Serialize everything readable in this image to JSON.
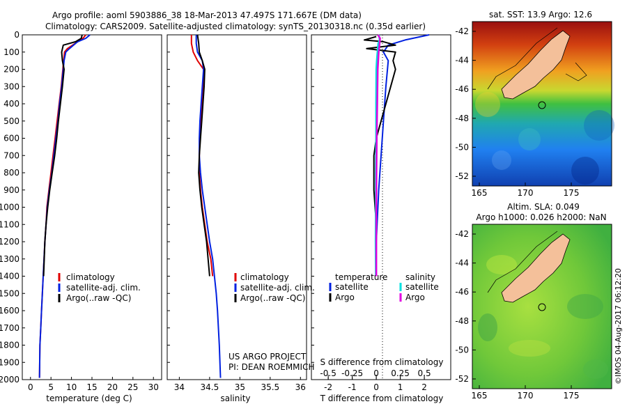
{
  "header": {
    "title_line1": "Argo profile: aoml 5903886_38 18-Mar-2013 47.497S 171.667E (DM data)",
    "title_line2": "Climatology: CARS2009. Satellite-adjusted climatology: synTS_20130318.nc (0.35d earlier)"
  },
  "colors": {
    "climatology": "#e00000",
    "satellite": "#0020e0",
    "argo": "#000000",
    "sal_satellite": "#00e0e0",
    "sal_argo": "#e000e0"
  },
  "y_ticks": [
    "0",
    "100",
    "200",
    "300",
    "400",
    "500",
    "600",
    "700",
    "800",
    "900",
    "1000",
    "1100",
    "1200",
    "1300",
    "1400",
    "1500",
    "1600",
    "1700",
    "1800",
    "1900",
    "2000"
  ],
  "temp_panel": {
    "xlabel": "temperature (deg C)",
    "x_ticks": [
      "0",
      "5",
      "10",
      "15",
      "20",
      "25",
      "30"
    ],
    "legend": [
      "climatology",
      "satellite-adj. clim.",
      "Argo(..raw -QC)"
    ]
  },
  "sal_panel": {
    "xlabel": "salinity",
    "x_ticks": [
      "34",
      "34.5",
      "35",
      "35.5",
      "36"
    ],
    "legend": [
      "climatology",
      "satellite-adj. clim.",
      "Argo(..raw -QC)"
    ],
    "credit1": "US ARGO PROJECT",
    "credit2": "PI: DEAN ROEMMICH"
  },
  "diff_panel": {
    "xlabel": "T difference from climatology",
    "s_label": "S difference from climatology",
    "t_ticks": [
      "-2",
      "-1",
      "0",
      "1",
      "2"
    ],
    "s_ticks": [
      "-0.5",
      "-0.25",
      "0",
      "0.25",
      "0.5"
    ],
    "legend_temp_title": "temperature",
    "legend_sal_title": "salinity",
    "legend_temp": [
      "satellite",
      "Argo"
    ],
    "legend_sal": [
      "satellite",
      "Argo"
    ]
  },
  "map1": {
    "title": "sat. SST: 13.9 Argo: 12.6",
    "y_ticks": [
      "-42",
      "-44",
      "-46",
      "-48",
      "-50",
      "-52"
    ],
    "x_ticks": [
      "165",
      "170",
      "175"
    ]
  },
  "map2": {
    "title1": "Altim. SLA: 0.049",
    "title2": "Argo h1000: 0.026 h2000: NaN",
    "y_ticks": [
      "-42",
      "-44",
      "-46",
      "-48",
      "-50",
      "-52"
    ],
    "x_ticks": [
      "165",
      "170",
      "175"
    ]
  },
  "footer": {
    "stamp": "©IMOS 04-Aug-2017 06:12:20"
  },
  "chart_data": [
    {
      "type": "line",
      "xlabel": "temperature (deg C)",
      "xlim": [
        -2,
        32
      ],
      "ylim": [
        2000,
        0
      ],
      "series": [
        {
          "name": "climatology",
          "x": [
            13.5,
            12.8,
            11.5,
            9.0,
            8.3,
            8.1,
            7.9,
            7.5,
            7.0,
            6.5,
            6.0,
            5.5,
            5.0,
            4.5,
            4.0,
            3.8,
            3.5,
            3.3,
            3.1,
            2.9,
            2.7,
            2.5,
            2.3,
            2.2
          ],
          "y": [
            0,
            20,
            40,
            80,
            100,
            150,
            200,
            300,
            400,
            500,
            600,
            700,
            800,
            900,
            1000,
            1100,
            1200,
            1300,
            1400,
            1500,
            1600,
            1700,
            1800,
            1990
          ]
        },
        {
          "name": "satellite-adj. clim.",
          "x": [
            14.5,
            13.5,
            11.5,
            9.5,
            8.6,
            8.2,
            8.0,
            7.6,
            7.1,
            6.7,
            6.2,
            5.7,
            5.2,
            4.6,
            4.1,
            3.8,
            3.5,
            3.3,
            3.1,
            2.9,
            2.7,
            2.5,
            2.3,
            2.2
          ],
          "y": [
            0,
            20,
            40,
            80,
            100,
            150,
            200,
            300,
            400,
            500,
            600,
            700,
            800,
            900,
            1000,
            1100,
            1200,
            1300,
            1400,
            1500,
            1600,
            1700,
            1800,
            1990
          ]
        },
        {
          "name": "Argo(..raw -QC)",
          "x": [
            12.6,
            12.4,
            11.0,
            8.0,
            7.6,
            7.8,
            8.2,
            7.8,
            7.3,
            6.8,
            6.4,
            5.9,
            5.3,
            4.7,
            4.2,
            3.8,
            3.5,
            3.2
          ],
          "y": [
            0,
            20,
            40,
            60,
            100,
            150,
            200,
            300,
            400,
            500,
            600,
            700,
            800,
            900,
            1000,
            1100,
            1200,
            1400
          ]
        }
      ]
    },
    {
      "type": "line",
      "xlabel": "salinity",
      "xlim": [
        33.8,
        36.1
      ],
      "ylim": [
        2000,
        0
      ],
      "series": [
        {
          "name": "climatology",
          "x": [
            34.2,
            34.2,
            34.23,
            34.3,
            34.4,
            34.4,
            34.38,
            34.36,
            34.34,
            34.33,
            34.33,
            34.35,
            34.38,
            34.42,
            34.46,
            34.52,
            34.55
          ],
          "y": [
            0,
            50,
            100,
            150,
            200,
            300,
            400,
            500,
            600,
            700,
            800,
            900,
            1000,
            1100,
            1200,
            1300,
            1400
          ]
        },
        {
          "name": "satellite-adj. clim.",
          "x": [
            34.28,
            34.28,
            34.3,
            34.38,
            34.4,
            34.38,
            34.36,
            34.34,
            34.33,
            34.33,
            34.35,
            34.38,
            34.42,
            34.46,
            34.5,
            34.55,
            34.58,
            34.61,
            34.63,
            34.66,
            34.68
          ],
          "y": [
            0,
            50,
            100,
            150,
            200,
            300,
            400,
            500,
            600,
            700,
            800,
            900,
            1000,
            1100,
            1200,
            1300,
            1400,
            1500,
            1600,
            1800,
            1990
          ]
        },
        {
          "name": "Argo(..raw -QC)",
          "x": [
            34.3,
            34.32,
            34.33,
            34.38,
            34.42,
            34.41,
            34.39,
            34.37,
            34.35,
            34.33,
            34.32,
            34.34,
            34.37,
            34.41,
            34.45,
            34.5
          ],
          "y": [
            0,
            50,
            100,
            150,
            200,
            300,
            400,
            500,
            600,
            700,
            800,
            900,
            1000,
            1100,
            1200,
            1400
          ]
        }
      ]
    },
    {
      "type": "line",
      "xlabel": "T difference from climatology",
      "xlim": [
        -2.7,
        3.1
      ],
      "ylim": [
        2000,
        0
      ],
      "series": [
        {
          "name": "temperature satellite",
          "x": [
            2.2,
            1.2,
            0.5,
            0.3,
            0.5,
            0.4,
            0.3,
            0.2,
            0.1,
            0.0,
            0.0
          ],
          "y": [
            0,
            30,
            60,
            100,
            150,
            300,
            500,
            700,
            900,
            1200,
            1400
          ]
        },
        {
          "name": "temperature Argo",
          "x": [
            0.0,
            -0.5,
            0.3,
            0.8,
            -0.4,
            0.8,
            0.7,
            0.8,
            0.6,
            0.4,
            0.2,
            0.0,
            -0.1,
            -0.1,
            0.0,
            0.0
          ],
          "y": [
            10,
            30,
            40,
            60,
            80,
            100,
            150,
            200,
            300,
            400,
            500,
            600,
            700,
            900,
            1100,
            1400
          ]
        },
        {
          "name": "salinity satellite",
          "x": [
            0.11,
            0.14,
            0.08,
            0.05,
            0.02,
            0.0,
            -0.01,
            -0.01,
            -0.02,
            -0.02,
            -0.03,
            -0.02
          ],
          "y": [
            0,
            30,
            50,
            100,
            150,
            200,
            400,
            600,
            800,
            1000,
            1200,
            1400
          ]
        },
        {
          "name": "salinity Argo",
          "x": [
            0.07,
            0.16,
            0.14,
            0.1,
            0.06,
            0.04,
            0.02,
            0.01,
            0.0,
            0.0,
            0.0
          ],
          "y": [
            0,
            20,
            50,
            100,
            200,
            400,
            600,
            800,
            1000,
            1200,
            1400
          ]
        }
      ]
    }
  ]
}
